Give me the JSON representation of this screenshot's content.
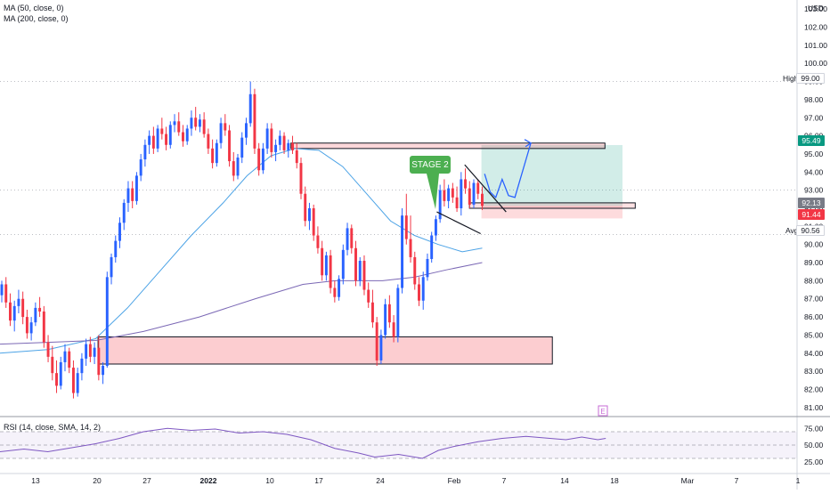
{
  "currency": "USD",
  "legend": {
    "ma50": "MA (50, close, 0)",
    "ma200": "MA (200, close, 0)",
    "rsi": "RSI (14, close, SMA, 14, 2)"
  },
  "price_axis": {
    "ticks": [
      "103.00",
      "102.00",
      "101.00",
      "100.00",
      "99.00",
      "98.00",
      "97.00",
      "96.00",
      "95.00",
      "94.00",
      "93.00",
      "92.00",
      "91.00",
      "90.00",
      "89.00",
      "88.00",
      "87.00",
      "86.00",
      "85.00",
      "84.00",
      "83.00",
      "82.00",
      "81.00"
    ],
    "tick_values": [
      103,
      102,
      101,
      100,
      99,
      98,
      97,
      96,
      95,
      94,
      93,
      92,
      91,
      90,
      89,
      88,
      87,
      86,
      85,
      84,
      83,
      82,
      81
    ]
  },
  "rsi_axis": {
    "ticks": [
      "75.00",
      "50.00",
      "25.00"
    ],
    "tick_values": [
      75,
      50,
      25
    ]
  },
  "time_axis": {
    "labels": [
      "13",
      "20",
      "27",
      "2022",
      "10",
      "17",
      "24",
      "Feb",
      "7",
      "14",
      "18",
      "Mar",
      "7",
      "1"
    ]
  },
  "tags": {
    "high": {
      "label": "High",
      "value": "99.00",
      "price": 99.0
    },
    "target": {
      "value": "95.49",
      "price": 95.49,
      "color": "#089981"
    },
    "current": {
      "value": "92.13",
      "price": 92.13,
      "color": "#787b86"
    },
    "stop": {
      "value": "91.44",
      "price": 91.44,
      "color": "#f23645"
    },
    "avg": {
      "label": "Avg",
      "value": "90.56",
      "price": 90.56
    }
  },
  "annotation": {
    "text": "STAGE 2",
    "color": "#4caf50"
  },
  "events": {
    "earnings_marker": "E"
  },
  "colors": {
    "up": "#2962ff",
    "down": "#f23645",
    "ma50": "#4ca3e6",
    "ma200": "#7b68b5",
    "rsi": "#7e57c2"
  },
  "chart_data": {
    "type": "candlestick",
    "ylim": [
      80.5,
      103.5
    ],
    "rsi_ylim": [
      10,
      90
    ],
    "zones": [
      {
        "name": "support",
        "y_low": 83.4,
        "y_high": 84.9,
        "x_start": 0.123,
        "x_end": 0.693
      },
      {
        "name": "resistance",
        "y_low": 95.3,
        "y_high": 95.6,
        "x_start": 0.365,
        "x_end": 0.759
      },
      {
        "name": "entry",
        "y_low": 92.0,
        "y_high": 92.3,
        "x_start": 0.589,
        "x_end": 0.797
      },
      {
        "name": "reward",
        "y_low": 92.13,
        "y_high": 95.49,
        "x_start": 0.604,
        "x_end": 0.781
      },
      {
        "name": "risk",
        "y_low": 91.44,
        "y_high": 92.13,
        "x_start": 0.604,
        "x_end": 0.781
      }
    ],
    "candles": [
      [
        87.2,
        88.0,
        86.8,
        87.8
      ],
      [
        87.8,
        88.2,
        86.5,
        86.8
      ],
      [
        86.8,
        87.3,
        85.5,
        85.8
      ],
      [
        85.8,
        86.9,
        85.2,
        86.6
      ],
      [
        86.6,
        87.5,
        86.2,
        87.0
      ],
      [
        87.0,
        87.4,
        85.6,
        86.0
      ],
      [
        86.0,
        86.4,
        84.8,
        85.1
      ],
      [
        85.1,
        86.0,
        84.7,
        85.7
      ],
      [
        85.7,
        86.8,
        85.5,
        86.5
      ],
      [
        86.5,
        87.1,
        86.0,
        86.3
      ],
      [
        86.3,
        86.6,
        84.3,
        84.6
      ],
      [
        84.6,
        85.0,
        83.5,
        83.8
      ],
      [
        83.8,
        84.4,
        82.5,
        82.9
      ],
      [
        82.9,
        83.6,
        81.8,
        82.2
      ],
      [
        82.2,
        83.8,
        82.0,
        83.5
      ],
      [
        83.5,
        84.5,
        83.0,
        84.1
      ],
      [
        84.1,
        84.3,
        82.9,
        83.2
      ],
      [
        83.2,
        83.6,
        81.5,
        81.8
      ],
      [
        81.8,
        83.2,
        81.6,
        82.9
      ],
      [
        82.9,
        84.0,
        82.5,
        83.7
      ],
      [
        83.7,
        84.8,
        83.3,
        84.5
      ],
      [
        84.5,
        84.9,
        83.5,
        83.8
      ],
      [
        83.8,
        84.6,
        83.4,
        84.3
      ],
      [
        84.3,
        85.0,
        82.5,
        82.8
      ],
      [
        82.8,
        83.5,
        82.3,
        83.3
      ],
      [
        83.3,
        88.5,
        83.2,
        88.2
      ],
      [
        88.2,
        89.5,
        87.8,
        89.3
      ],
      [
        89.3,
        90.5,
        89.0,
        90.2
      ],
      [
        90.2,
        91.5,
        89.8,
        91.2
      ],
      [
        91.2,
        92.5,
        90.8,
        92.3
      ],
      [
        92.3,
        93.5,
        91.8,
        93.1
      ],
      [
        93.1,
        93.5,
        92.0,
        92.4
      ],
      [
        92.4,
        94.0,
        92.2,
        93.8
      ],
      [
        93.8,
        95.0,
        93.5,
        94.7
      ],
      [
        94.7,
        95.8,
        94.3,
        95.5
      ],
      [
        95.5,
        96.3,
        95.0,
        96.0
      ],
      [
        96.0,
        96.5,
        95.0,
        95.3
      ],
      [
        95.3,
        96.6,
        95.1,
        96.4
      ],
      [
        96.4,
        97.0,
        95.8,
        96.1
      ],
      [
        96.1,
        96.5,
        95.2,
        95.5
      ],
      [
        95.5,
        96.8,
        95.3,
        96.6
      ],
      [
        96.6,
        97.2,
        96.2,
        96.8
      ],
      [
        96.8,
        97.3,
        96.0,
        96.2
      ],
      [
        96.2,
        96.6,
        95.4,
        95.7
      ],
      [
        95.7,
        96.6,
        95.5,
        96.4
      ],
      [
        96.4,
        97.4,
        96.0,
        97.0
      ],
      [
        97.0,
        97.6,
        96.3,
        96.5
      ],
      [
        96.5,
        97.2,
        96.2,
        96.9
      ],
      [
        96.9,
        97.3,
        95.9,
        96.1
      ],
      [
        96.1,
        96.4,
        95.0,
        95.3
      ],
      [
        95.3,
        95.8,
        94.2,
        94.5
      ],
      [
        94.5,
        95.8,
        94.3,
        95.6
      ],
      [
        95.6,
        97.0,
        95.3,
        96.7
      ],
      [
        96.7,
        97.2,
        96.0,
        96.3
      ],
      [
        96.3,
        96.6,
        94.3,
        94.6
      ],
      [
        94.6,
        95.1,
        93.5,
        93.8
      ],
      [
        93.8,
        95.0,
        93.6,
        94.8
      ],
      [
        94.8,
        96.2,
        94.5,
        95.9
      ],
      [
        95.9,
        97.0,
        95.5,
        96.7
      ],
      [
        96.7,
        99.0,
        96.5,
        98.3
      ],
      [
        98.3,
        98.6,
        95.0,
        95.3
      ],
      [
        95.3,
        95.6,
        93.8,
        94.1
      ],
      [
        94.1,
        95.6,
        93.9,
        95.3
      ],
      [
        95.3,
        96.7,
        95.0,
        96.4
      ],
      [
        96.4,
        96.7,
        94.8,
        95.1
      ],
      [
        95.1,
        95.8,
        94.6,
        95.5
      ],
      [
        95.5,
        96.3,
        95.2,
        96.0
      ],
      [
        96.0,
        96.2,
        95.0,
        95.2
      ],
      [
        95.2,
        95.8,
        94.8,
        95.6
      ],
      [
        95.6,
        96.0,
        95.0,
        95.2
      ],
      [
        95.2,
        95.6,
        94.2,
        94.5
      ],
      [
        94.5,
        94.8,
        92.5,
        92.8
      ],
      [
        92.8,
        93.2,
        91.0,
        91.3
      ],
      [
        91.3,
        92.3,
        90.8,
        92.0
      ],
      [
        92.0,
        92.2,
        90.2,
        90.5
      ],
      [
        90.5,
        91.0,
        89.5,
        89.8
      ],
      [
        89.8,
        90.2,
        88.0,
        88.3
      ],
      [
        88.3,
        89.6,
        88.0,
        89.4
      ],
      [
        89.4,
        89.7,
        87.3,
        87.6
      ],
      [
        87.6,
        88.0,
        86.8,
        87.1
      ],
      [
        87.1,
        88.3,
        86.9,
        88.1
      ],
      [
        88.1,
        90.0,
        87.8,
        89.7
      ],
      [
        89.7,
        91.2,
        89.4,
        90.9
      ],
      [
        90.9,
        91.1,
        89.5,
        89.8
      ],
      [
        89.8,
        90.2,
        87.7,
        88.0
      ],
      [
        88.0,
        89.3,
        87.7,
        89.1
      ],
      [
        89.1,
        89.4,
        87.2,
        87.5
      ],
      [
        87.5,
        87.9,
        86.5,
        86.8
      ],
      [
        86.8,
        87.5,
        85.4,
        85.7
      ],
      [
        85.7,
        86.0,
        83.3,
        83.6
      ],
      [
        83.6,
        85.3,
        83.4,
        85.0
      ],
      [
        85.0,
        87.0,
        84.8,
        86.7
      ],
      [
        86.7,
        87.2,
        85.4,
        85.7
      ],
      [
        85.7,
        86.1,
        84.6,
        84.9
      ],
      [
        84.9,
        87.8,
        84.6,
        87.6
      ],
      [
        87.6,
        92.0,
        87.3,
        91.6
      ],
      [
        91.6,
        92.8,
        90.0,
        90.3
      ],
      [
        90.3,
        91.6,
        89.0,
        89.3
      ],
      [
        89.3,
        89.6,
        87.5,
        87.8
      ],
      [
        87.8,
        88.2,
        86.6,
        86.9
      ],
      [
        86.9,
        88.5,
        86.4,
        88.2
      ],
      [
        88.2,
        89.5,
        88.0,
        89.2
      ],
      [
        89.2,
        90.7,
        89.0,
        90.5
      ],
      [
        90.5,
        91.6,
        90.2,
        91.4
      ],
      [
        91.4,
        93.3,
        91.2,
        93.0
      ],
      [
        93.0,
        93.6,
        92.1,
        92.4
      ],
      [
        92.4,
        93.3,
        92.0,
        93.1
      ],
      [
        93.1,
        93.4,
        92.3,
        92.6
      ],
      [
        92.6,
        93.2,
        91.8,
        92.0
      ],
      [
        92.0,
        94.0,
        91.6,
        93.6
      ],
      [
        93.6,
        94.2,
        92.8,
        93.1
      ],
      [
        93.1,
        93.5,
        92.0,
        92.2
      ],
      [
        92.2,
        93.6,
        92.0,
        93.4
      ],
      [
        93.4,
        93.6,
        92.5,
        92.8
      ],
      [
        92.8,
        93.2,
        91.9,
        92.13
      ]
    ],
    "ma50": [
      [
        0.0,
        84.0
      ],
      [
        0.06,
        84.2
      ],
      [
        0.12,
        84.8
      ],
      [
        0.16,
        86.5
      ],
      [
        0.2,
        88.5
      ],
      [
        0.24,
        90.5
      ],
      [
        0.28,
        92.3
      ],
      [
        0.31,
        93.8
      ],
      [
        0.34,
        94.9
      ],
      [
        0.37,
        95.3
      ],
      [
        0.4,
        95.2
      ],
      [
        0.43,
        94.3
      ],
      [
        0.46,
        92.8
      ],
      [
        0.49,
        91.3
      ],
      [
        0.52,
        90.5
      ],
      [
        0.55,
        90.0
      ],
      [
        0.58,
        89.6
      ],
      [
        0.605,
        89.8
      ]
    ],
    "ma200": [
      [
        0.0,
        84.5
      ],
      [
        0.06,
        84.6
      ],
      [
        0.12,
        84.7
      ],
      [
        0.18,
        85.2
      ],
      [
        0.25,
        86.0
      ],
      [
        0.32,
        87.0
      ],
      [
        0.38,
        87.8
      ],
      [
        0.42,
        88.0
      ],
      [
        0.48,
        88.0
      ],
      [
        0.52,
        88.2
      ],
      [
        0.56,
        88.6
      ],
      [
        0.605,
        89.0
      ]
    ],
    "rsi": [
      [
        0.0,
        40
      ],
      [
        0.03,
        44
      ],
      [
        0.06,
        40
      ],
      [
        0.09,
        46
      ],
      [
        0.12,
        52
      ],
      [
        0.15,
        60
      ],
      [
        0.18,
        70
      ],
      [
        0.21,
        75
      ],
      [
        0.24,
        72
      ],
      [
        0.27,
        74
      ],
      [
        0.3,
        68
      ],
      [
        0.33,
        70
      ],
      [
        0.36,
        66
      ],
      [
        0.39,
        58
      ],
      [
        0.42,
        45
      ],
      [
        0.45,
        38
      ],
      [
        0.47,
        32
      ],
      [
        0.5,
        36
      ],
      [
        0.53,
        30
      ],
      [
        0.55,
        42
      ],
      [
        0.57,
        48
      ],
      [
        0.6,
        55
      ],
      [
        0.63,
        60
      ],
      [
        0.66,
        63
      ],
      [
        0.69,
        60
      ],
      [
        0.71,
        58
      ],
      [
        0.73,
        62
      ],
      [
        0.75,
        58
      ],
      [
        0.76,
        60
      ]
    ],
    "drawings": {
      "projection": [
        [
          0.608,
          93.9
        ],
        [
          0.615,
          92.9
        ],
        [
          0.622,
          92.6
        ],
        [
          0.63,
          93.6
        ],
        [
          0.638,
          92.7
        ],
        [
          0.646,
          92.6
        ],
        [
          0.666,
          95.6
        ]
      ],
      "wedge_upper": [
        [
          0.583,
          94.4
        ],
        [
          0.635,
          91.8
        ]
      ],
      "wedge_lower": [
        [
          0.548,
          91.8
        ],
        [
          0.603,
          90.6
        ]
      ]
    }
  }
}
